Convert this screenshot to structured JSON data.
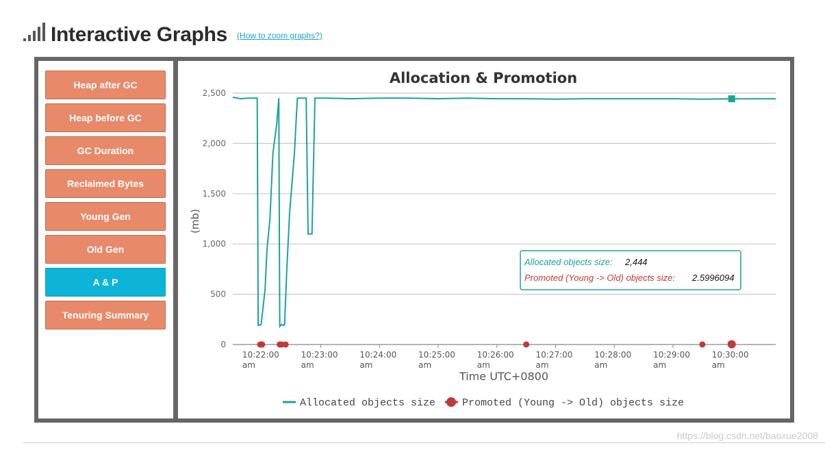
{
  "header": {
    "title": "Interactive Graphs",
    "zoom_link": "(How to zoom graphs?)"
  },
  "sidebar": {
    "items": [
      {
        "label": "Heap after GC",
        "active": false
      },
      {
        "label": "Heap before GC",
        "active": false
      },
      {
        "label": "GC Duration",
        "active": false
      },
      {
        "label": "Reclaimed Bytes",
        "active": false
      },
      {
        "label": "Young Gen",
        "active": false
      },
      {
        "label": "Old Gen",
        "active": false
      },
      {
        "label": "A & P",
        "active": true
      },
      {
        "label": "Tenuring Summary",
        "active": false
      }
    ]
  },
  "tooltip": {
    "allocated_label": "Allocated objects size:",
    "allocated_value": "2,444",
    "promoted_label": "Promoted (Young -> Old) objects size:",
    "promoted_value": "2.5996094"
  },
  "watermark": "https://blog.csdn.net/baoxue2008",
  "colors": {
    "allocated": "#1aa39a",
    "promoted": "#c0393b",
    "active_tab": "#0db4d8",
    "tab": "#e8896a"
  },
  "chart_data": {
    "type": "line",
    "title": "Allocation & Promotion",
    "xlabel": "Time UTC+0800",
    "ylabel": "(mb)",
    "ylim": [
      0,
      2500
    ],
    "yticks": [
      0,
      500,
      1000,
      1500,
      2000,
      2500
    ],
    "ytick_labels": [
      "0",
      "500",
      "1,000",
      "1,500",
      "2,000",
      "2,500"
    ],
    "xlim": [
      "10:21:30",
      "10:30:45"
    ],
    "xticks": [
      {
        "t": "10:22:00",
        "line1": "10:22:00",
        "line2": "am"
      },
      {
        "t": "10:23:00",
        "line1": "10:23:00",
        "line2": "am"
      },
      {
        "t": "10:24:00",
        "line1": "10:24:00",
        "line2": "am"
      },
      {
        "t": "10:25:00",
        "line1": "10:25:00",
        "line2": "am"
      },
      {
        "t": "10:26:00",
        "line1": "10:26:00",
        "line2": "am"
      },
      {
        "t": "10:27:00",
        "line1": "10:27:00",
        "line2": "am"
      },
      {
        "t": "10:28:00",
        "line1": "10:28:00",
        "line2": "am"
      },
      {
        "t": "10:29:00",
        "line1": "10:29:00",
        "line2": "am"
      },
      {
        "t": "10:30:00",
        "line1": "10:30:00",
        "line2": "am"
      }
    ],
    "legend_position": "bottom",
    "series": [
      {
        "name": "Allocated objects size",
        "points": [
          [
            "10:21:30",
            2460
          ],
          [
            "10:21:38",
            2445
          ],
          [
            "10:21:45",
            2450
          ],
          [
            "10:21:55",
            2450
          ],
          [
            "10:21:56",
            190
          ],
          [
            "10:21:59",
            200
          ],
          [
            "10:22:03",
            550
          ],
          [
            "10:22:05",
            950
          ],
          [
            "10:22:08",
            1250
          ],
          [
            "10:22:11",
            1900
          ],
          [
            "10:22:15",
            2200
          ],
          [
            "10:22:17",
            2450
          ],
          [
            "10:22:18",
            180
          ],
          [
            "10:22:20",
            200
          ],
          [
            "10:22:22",
            190
          ],
          [
            "10:22:23",
            200
          ],
          [
            "10:22:25",
            700
          ],
          [
            "10:22:28",
            1300
          ],
          [
            "10:22:33",
            1900
          ],
          [
            "10:22:36",
            2450
          ],
          [
            "10:22:45",
            2450
          ],
          [
            "10:22:47",
            1100
          ],
          [
            "10:22:51",
            1100
          ],
          [
            "10:22:54",
            2450
          ],
          [
            "10:23:05",
            2450
          ],
          [
            "10:23:30",
            2445
          ],
          [
            "10:24:00",
            2450
          ],
          [
            "10:24:30",
            2450
          ],
          [
            "10:25:00",
            2445
          ],
          [
            "10:25:30",
            2450
          ],
          [
            "10:26:00",
            2445
          ],
          [
            "10:26:30",
            2445
          ],
          [
            "10:27:00",
            2440
          ],
          [
            "10:27:30",
            2445
          ],
          [
            "10:28:00",
            2445
          ],
          [
            "10:28:30",
            2445
          ],
          [
            "10:29:00",
            2445
          ],
          [
            "10:29:30",
            2440
          ],
          [
            "10:30:00",
            2444
          ],
          [
            "10:30:45",
            2444
          ]
        ]
      },
      {
        "name": "Promoted (Young -> Old) objects size",
        "points": [
          [
            "10:21:58",
            0.2
          ],
          [
            "10:22:00",
            0.3
          ],
          [
            "10:22:18",
            0.1
          ],
          [
            "10:22:20",
            0.2
          ],
          [
            "10:22:24",
            0.2
          ],
          [
            "10:26:30",
            0.5
          ],
          [
            "10:29:30",
            0.8
          ],
          [
            "10:30:00",
            2.5996094
          ]
        ]
      }
    ],
    "highlighted": {
      "t": "10:30:00",
      "allocated": 2444,
      "promoted": 2.5996094
    }
  }
}
